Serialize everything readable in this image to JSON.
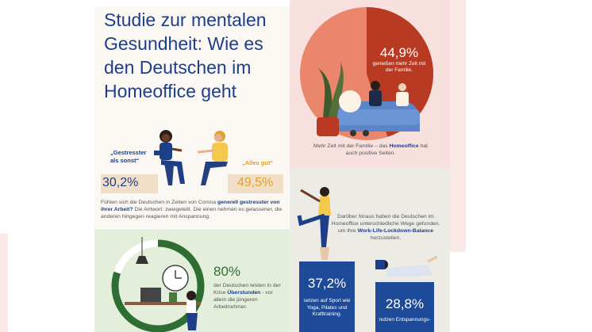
{
  "title": "Studie zur mentalen Gesundheit: Wie es den Deutschen im Homeoffice geht",
  "stress": {
    "quote_stressed": "„Gestresster als sonst“",
    "pct_stressed": "30,2%",
    "quote_ok": "„Alles gut“",
    "pct_ok": "49,5%",
    "text_pre": "Fühlen sich die Deutschen in Zeiten von Corona ",
    "text_bold": "generell gestresster von ihrer Arbeit?",
    "text_post": " Die Antwort: zweigeteilt. Die einen nehmen es gelassener, die anderen hingegen reagieren mit Anspannung."
  },
  "family": {
    "pct": "44,9%",
    "sub": "genießen mehr Zeit mit der Familie.",
    "value": 44.9,
    "caption_pre": "Mehr Zeit mit der Familie – das ",
    "caption_bold": "Homeoffice",
    "caption_post": " hat auch positive Seiten."
  },
  "worklife": {
    "text_pre": "Darüber hinaus haben die Deutschen im Homeoffice unterschiedliche Wege gefunden, um ihre ",
    "text_bold": "Work-Life-Lockdown-Balance",
    "text_post": " herzustellen.",
    "sport_pct": "37,2%",
    "sport_sub": "setzen auf Sport wie Yoga, Pilates und Krafttraining.",
    "relax_pct": "28,8%",
    "relax_sub": "nutzen Entspannungs-"
  },
  "overtime": {
    "pct": "80%",
    "text_pre": "der Deutschen leisten in der Krise ",
    "text_bold": "Überstunden",
    "text_post": " - vor allem die jüngeren Arbeitnehmer."
  },
  "colors": {
    "navy": "#1d3f8a",
    "orange": "#e0a12a",
    "pie_light": "#e9866c",
    "pie_dark": "#b83a22",
    "green": "#2e6e32",
    "stat_blue": "#1d4a99"
  }
}
